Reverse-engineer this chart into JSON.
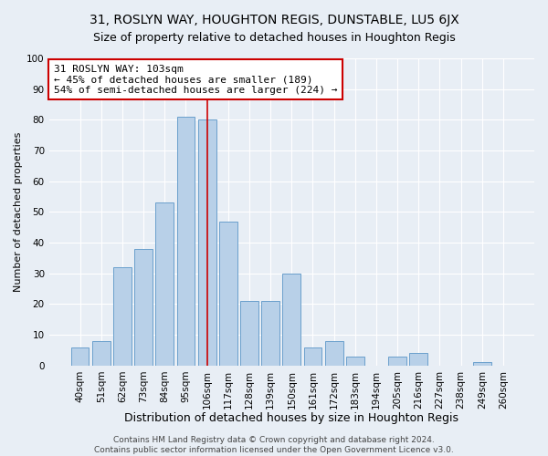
{
  "title": "31, ROSLYN WAY, HOUGHTON REGIS, DUNSTABLE, LU5 6JX",
  "subtitle": "Size of property relative to detached houses in Houghton Regis",
  "xlabel": "Distribution of detached houses by size in Houghton Regis",
  "ylabel": "Number of detached properties",
  "bar_labels": [
    "40sqm",
    "51sqm",
    "62sqm",
    "73sqm",
    "84sqm",
    "95sqm",
    "106sqm",
    "117sqm",
    "128sqm",
    "139sqm",
    "150sqm",
    "161sqm",
    "172sqm",
    "183sqm",
    "194sqm",
    "205sqm",
    "216sqm",
    "227sqm",
    "238sqm",
    "249sqm",
    "260sqm"
  ],
  "bar_heights": [
    6,
    8,
    32,
    38,
    53,
    81,
    80,
    47,
    21,
    21,
    30,
    6,
    8,
    3,
    0,
    3,
    4,
    0,
    0,
    1,
    0
  ],
  "bar_color": "#b8d0e8",
  "bar_edge_color": "#6aa0cc",
  "background_color": "#e8eef5",
  "grid_color": "#ffffff",
  "annotation_line_color": "#cc0000",
  "annotation_box_text": "31 ROSLYN WAY: 103sqm\n← 45% of detached houses are smaller (189)\n54% of semi-detached houses are larger (224) →",
  "annotation_box_color": "#ffffff",
  "annotation_box_edge_color": "#cc0000",
  "ylim": [
    0,
    100
  ],
  "yticks": [
    0,
    10,
    20,
    30,
    40,
    50,
    60,
    70,
    80,
    90,
    100
  ],
  "footer_line1": "Contains HM Land Registry data © Crown copyright and database right 2024.",
  "footer_line2": "Contains public sector information licensed under the Open Government Licence v3.0.",
  "title_fontsize": 10,
  "subtitle_fontsize": 9,
  "xlabel_fontsize": 9,
  "ylabel_fontsize": 8,
  "tick_fontsize": 7.5,
  "footer_fontsize": 6.5,
  "annotation_fontsize": 8
}
